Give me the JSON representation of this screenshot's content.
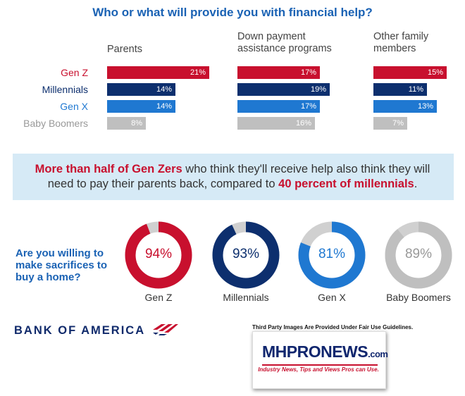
{
  "title": "Who or what will provide you with financial help?",
  "colors": {
    "genz": "#c8102e",
    "millennials": "#0d2f6e",
    "genx": "#1f78d1",
    "boomers": "#bfbfbf",
    "label_genz": "#c8102e",
    "label_millennials": "#0d2f6e",
    "label_genx": "#1f78d1",
    "label_boomers": "#999999",
    "ring_track": "#d0d0d0"
  },
  "chart_data": [
    {
      "type": "bar",
      "title": "Who or what will provide you with financial help?",
      "orientation": "horizontal",
      "categories": [
        "Gen Z",
        "Millennials",
        "Gen X",
        "Baby Boomers"
      ],
      "groups": [
        "Parents",
        "Down payment assistance programs",
        "Other family members"
      ],
      "series": [
        {
          "name": "Parents",
          "values": [
            21,
            14,
            14,
            8
          ],
          "labels": [
            "21%",
            "14%",
            "14%",
            "8%"
          ]
        },
        {
          "name": "Down payment assistance programs",
          "values": [
            17,
            19,
            17,
            16
          ],
          "labels": [
            "17%",
            "19%",
            "17%",
            "16%"
          ]
        },
        {
          "name": "Other family members",
          "values": [
            15,
            11,
            13,
            7
          ],
          "labels": [
            "15%",
            "11%",
            "13%",
            "7%"
          ]
        }
      ],
      "unit": "%"
    },
    {
      "type": "pie",
      "style": "donut",
      "title": "Are you willing to make sacrifices to buy a home?",
      "categories": [
        "Gen Z",
        "Millennials",
        "Gen X",
        "Baby Boomers"
      ],
      "values": [
        94,
        93,
        81,
        89
      ],
      "labels": [
        "94%",
        "93%",
        "81%",
        "89%"
      ],
      "unit": "%"
    }
  ],
  "bar_section": {
    "columns": [
      {
        "heading_line1": "Parents",
        "heading_line2": ""
      },
      {
        "heading_line1": "Down payment",
        "heading_line2": "assistance programs"
      },
      {
        "heading_line1": "Other family",
        "heading_line2": "members"
      }
    ],
    "generations": [
      "Gen Z",
      "Millennials",
      "Gen X",
      "Baby Boomers"
    ]
  },
  "callout": {
    "part1_bold": "More than half of Gen Zers",
    "part2": " who think they'll receive help also think they will need to pay their parents back, compared to ",
    "part3_bold": "40 percent of millennials",
    "part4": "."
  },
  "donut_section": {
    "question": "Are you willing to make sacrifices to buy a home?"
  },
  "footer": {
    "brand": "BANK OF AMERICA",
    "brand_icon": "bank-of-america-flag-icon",
    "disclaimer": "Third Party Images Are Provided Under Fair Use Guidelines.",
    "mh_logo_main": "MHPRONEWS",
    "mh_logo_suffix": ".com",
    "mh_tagline": "Industry News, Tips and Views Pros can Use."
  }
}
